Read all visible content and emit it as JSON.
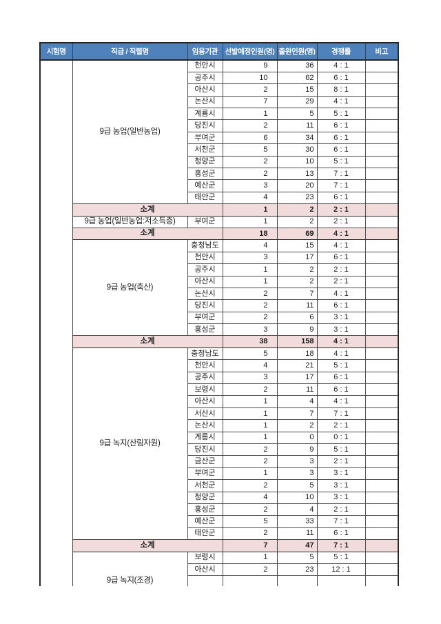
{
  "colors": {
    "header_bg": "#4f81bd",
    "header_text": "#ffffff",
    "subtotal_bg": "#f2dcdb",
    "grid_line": "#4a4a4a",
    "outer_border": "#262626",
    "text": "#1c1c1c",
    "page_bg": "#ffffff"
  },
  "table": {
    "headers": [
      "시험명",
      "직급 / 직렬명",
      "임용기관",
      "선발예정인원(명)",
      "출원인원(명)",
      "경쟁률",
      "비고"
    ],
    "exam_name": "",
    "subtotal_label": "소계",
    "groups": [
      {
        "type": "section",
        "label": "9급 농업(일반농업)",
        "rows": [
          {
            "agency": "천안시",
            "planned": "9",
            "applicants": "36",
            "ratio": "4 : 1",
            "note": ""
          },
          {
            "agency": "공주시",
            "planned": "10",
            "applicants": "62",
            "ratio": "6 : 1",
            "note": ""
          },
          {
            "agency": "아산시",
            "planned": "2",
            "applicants": "15",
            "ratio": "8 : 1",
            "note": ""
          },
          {
            "agency": "논산시",
            "planned": "7",
            "applicants": "29",
            "ratio": "4 : 1",
            "note": ""
          },
          {
            "agency": "계룡시",
            "planned": "1",
            "applicants": "5",
            "ratio": "5 : 1",
            "note": ""
          },
          {
            "agency": "당진시",
            "planned": "2",
            "applicants": "11",
            "ratio": "6 : 1",
            "note": ""
          },
          {
            "agency": "부여군",
            "planned": "6",
            "applicants": "34",
            "ratio": "6 : 1",
            "note": ""
          },
          {
            "agency": "서천군",
            "planned": "5",
            "applicants": "30",
            "ratio": "6 : 1",
            "note": ""
          },
          {
            "agency": "청양군",
            "planned": "2",
            "applicants": "10",
            "ratio": "5 : 1",
            "note": ""
          },
          {
            "agency": "홍성군",
            "planned": "2",
            "applicants": "13",
            "ratio": "7 : 1",
            "note": ""
          },
          {
            "agency": "예산군",
            "planned": "3",
            "applicants": "20",
            "ratio": "7 : 1",
            "note": ""
          },
          {
            "agency": "태안군",
            "planned": "4",
            "applicants": "23",
            "ratio": "6 : 1",
            "note": ""
          }
        ]
      },
      {
        "type": "subtotal",
        "label": "소계",
        "planned": "1",
        "applicants": "2",
        "ratio": "2 : 1",
        "note": ""
      },
      {
        "type": "section",
        "label": "9급 농업(일반농업:저소득층)",
        "rows": [
          {
            "agency": "부여군",
            "planned": "1",
            "applicants": "2",
            "ratio": "2 : 1",
            "note": ""
          }
        ]
      },
      {
        "type": "subtotal",
        "label": "소계",
        "planned": "18",
        "applicants": "69",
        "ratio": "4 : 1",
        "note": ""
      },
      {
        "type": "section",
        "label": "9급 농업(축산)",
        "rows": [
          {
            "agency": "충청남도",
            "planned": "4",
            "applicants": "15",
            "ratio": "4 : 1",
            "note": ""
          },
          {
            "agency": "천안시",
            "planned": "3",
            "applicants": "17",
            "ratio": "6 : 1",
            "note": ""
          },
          {
            "agency": "공주시",
            "planned": "1",
            "applicants": "2",
            "ratio": "2 : 1",
            "note": ""
          },
          {
            "agency": "아산시",
            "planned": "1",
            "applicants": "2",
            "ratio": "2 : 1",
            "note": ""
          },
          {
            "agency": "논산시",
            "planned": "2",
            "applicants": "7",
            "ratio": "4 : 1",
            "note": ""
          },
          {
            "agency": "당진시",
            "planned": "2",
            "applicants": "11",
            "ratio": "6 : 1",
            "note": ""
          },
          {
            "agency": "부여군",
            "planned": "2",
            "applicants": "6",
            "ratio": "3 : 1",
            "note": ""
          },
          {
            "agency": "홍성군",
            "planned": "3",
            "applicants": "9",
            "ratio": "3 : 1",
            "note": ""
          }
        ]
      },
      {
        "type": "subtotal",
        "label": "소계",
        "planned": "38",
        "applicants": "158",
        "ratio": "4 : 1",
        "note": ""
      },
      {
        "type": "section",
        "label": "9급 녹지(산림자원)",
        "rows": [
          {
            "agency": "충청남도",
            "planned": "5",
            "applicants": "18",
            "ratio": "4 : 1",
            "note": ""
          },
          {
            "agency": "천안시",
            "planned": "4",
            "applicants": "21",
            "ratio": "5 : 1",
            "note": ""
          },
          {
            "agency": "공주시",
            "planned": "3",
            "applicants": "17",
            "ratio": "6 : 1",
            "note": ""
          },
          {
            "agency": "보령시",
            "planned": "2",
            "applicants": "11",
            "ratio": "6 : 1",
            "note": ""
          },
          {
            "agency": "아산시",
            "planned": "1",
            "applicants": "4",
            "ratio": "4 : 1",
            "note": ""
          },
          {
            "agency": "서산시",
            "planned": "1",
            "applicants": "7",
            "ratio": "7 : 1",
            "note": ""
          },
          {
            "agency": "논산시",
            "planned": "1",
            "applicants": "2",
            "ratio": "2 : 1",
            "note": ""
          },
          {
            "agency": "계룡시",
            "planned": "1",
            "applicants": "0",
            "ratio": "0 : 1",
            "note": ""
          },
          {
            "agency": "당진시",
            "planned": "2",
            "applicants": "9",
            "ratio": "5 : 1",
            "note": ""
          },
          {
            "agency": "금산군",
            "planned": "2",
            "applicants": "3",
            "ratio": "2 : 1",
            "note": ""
          },
          {
            "agency": "부여군",
            "planned": "1",
            "applicants": "3",
            "ratio": "3 : 1",
            "note": ""
          },
          {
            "agency": "서천군",
            "planned": "2",
            "applicants": "5",
            "ratio": "3 : 1",
            "note": ""
          },
          {
            "agency": "청양군",
            "planned": "4",
            "applicants": "10",
            "ratio": "3 : 1",
            "note": ""
          },
          {
            "agency": "홍성군",
            "planned": "2",
            "applicants": "4",
            "ratio": "2 : 1",
            "note": ""
          },
          {
            "agency": "예산군",
            "planned": "5",
            "applicants": "33",
            "ratio": "7 : 1",
            "note": ""
          },
          {
            "agency": "태안군",
            "planned": "2",
            "applicants": "11",
            "ratio": "6 : 1",
            "note": ""
          }
        ]
      },
      {
        "type": "subtotal",
        "label": "소계",
        "planned": "7",
        "applicants": "47",
        "ratio": "7 : 1",
        "note": ""
      },
      {
        "type": "section",
        "label": "9급 녹지(조경)",
        "clipped": true,
        "hidden_continuation_rows": 3,
        "rows": [
          {
            "agency": "보령시",
            "planned": "1",
            "applicants": "5",
            "ratio": "5 : 1",
            "note": ""
          },
          {
            "agency": "아산시",
            "planned": "2",
            "applicants": "23",
            "ratio": "12 : 1",
            "note": ""
          }
        ]
      }
    ]
  }
}
